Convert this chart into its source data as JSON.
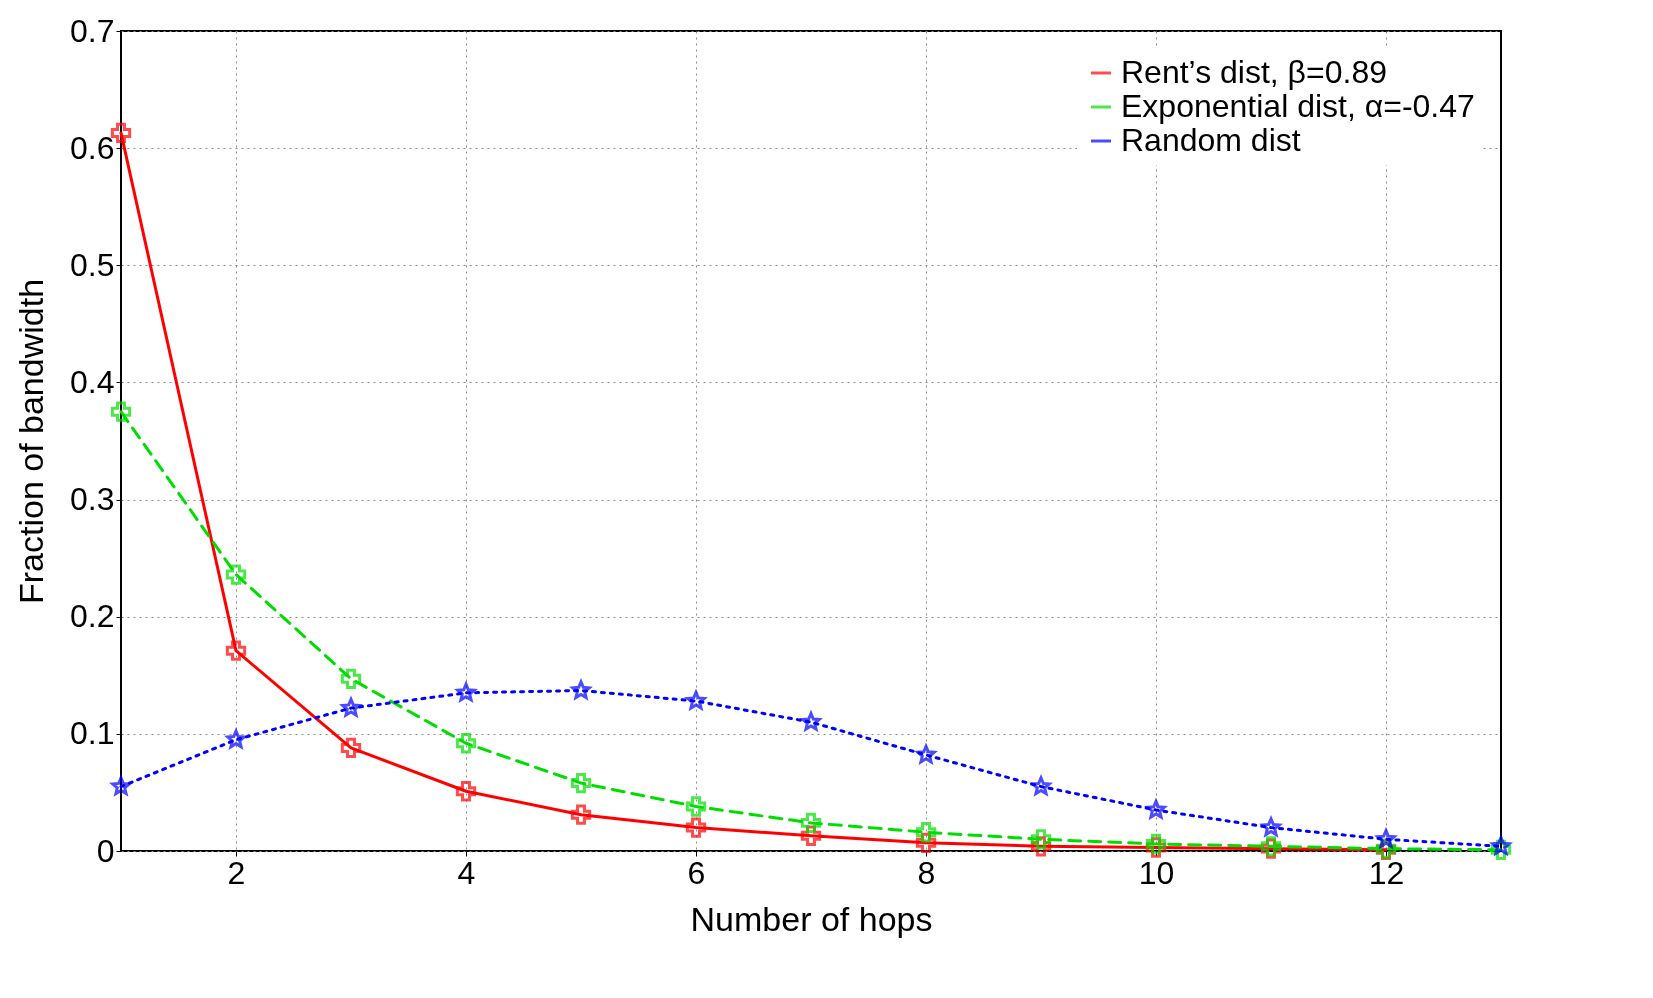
{
  "chart_data": {
    "type": "line",
    "xlabel": "Number of hops",
    "ylabel": "Fraction of bandwidth",
    "x": [
      1,
      2,
      3,
      4,
      5,
      6,
      7,
      8,
      9,
      10,
      11,
      12,
      13
    ],
    "xlim": [
      1,
      13
    ],
    "xticks": [
      2,
      4,
      6,
      8,
      10,
      12
    ],
    "ylim": [
      0,
      0.7
    ],
    "yticks": [
      0,
      0.1,
      0.2,
      0.3,
      0.4,
      0.5,
      0.6,
      0.7
    ],
    "grid": true,
    "legend": "top right",
    "series": [
      {
        "name": "Rent’s dist, β=0.89",
        "color": "#ff0000",
        "line_style": "solid",
        "marker": "cross",
        "values": [
          0.613,
          0.171,
          0.088,
          0.051,
          0.031,
          0.02,
          0.013,
          0.007,
          0.004,
          0.003,
          0.002,
          0.001,
          null
        ]
      },
      {
        "name": "Exponential dist, α=-0.47",
        "color": "#00dd00",
        "line_style": "dashed",
        "marker": "cross",
        "values": [
          0.375,
          0.236,
          0.147,
          0.092,
          0.058,
          0.038,
          0.024,
          0.016,
          0.01,
          0.006,
          0.004,
          0.002,
          0.001
        ]
      },
      {
        "name": "Random dist",
        "color": "#0000ff",
        "line_style": "dotted",
        "marker": "star",
        "values": [
          0.055,
          0.095,
          0.122,
          0.135,
          0.137,
          0.128,
          0.11,
          0.082,
          0.055,
          0.035,
          0.02,
          0.01,
          0.004
        ]
      }
    ]
  }
}
